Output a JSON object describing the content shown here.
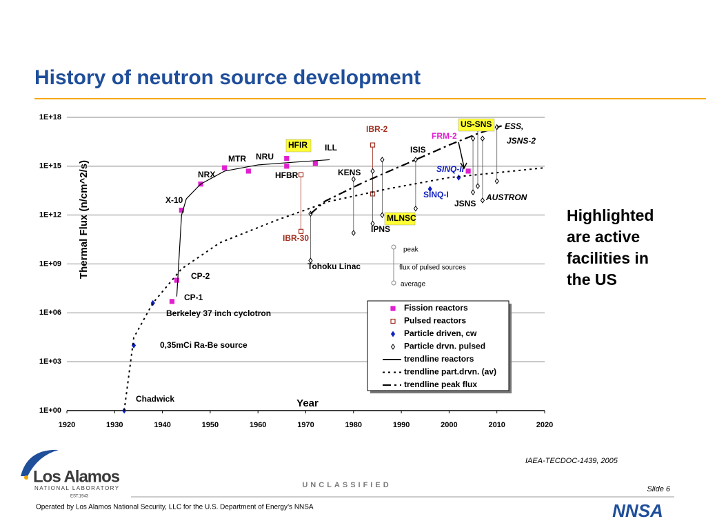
{
  "title": "History of neutron source development",
  "side_text": [
    "Highlighted",
    "are active",
    "facilities in",
    "the US"
  ],
  "source": "IAEA-TECDOC-1439, 2005",
  "classification": "UNCLASSIFIED",
  "slide": "Slide 6",
  "footer": "Operated by Los Alamos National Security, LLC for the U.S. Department of Energy’s NNSA",
  "logo": {
    "name": "Los Alamos",
    "sub": "NATIONAL LABORATORY",
    "est": "EST.1943",
    "partner": "NNSA"
  },
  "chart_data": {
    "type": "scatter",
    "xlabel": "Year",
    "ylabel": "Thermal Flux (n/cm^2/s)",
    "xlim": [
      1920,
      2020
    ],
    "xticks": [
      1920,
      1930,
      1940,
      1950,
      1960,
      1970,
      1980,
      1990,
      2000,
      2010,
      2020
    ],
    "ylim": [
      1,
      1e+18
    ],
    "log_y": true,
    "grid": true,
    "yticks": [
      {
        "value": 1,
        "label": "1E+00"
      },
      {
        "value": 1000,
        "label": "1E+03"
      },
      {
        "value": 1000000,
        "label": "1E+06"
      },
      {
        "value": 1000000000,
        "label": "1E+09"
      },
      {
        "value": 1000000000000,
        "label": "1E+12"
      },
      {
        "value": 1000000000000000,
        "label": "1E+15"
      },
      {
        "value": 1e+18,
        "label": "1E+18"
      }
    ],
    "series": [
      {
        "name": "Fission reactors",
        "color": "#e020d0",
        "marker": "square",
        "x": [
          1942,
          1943,
          1944,
          1948,
          1953,
          1958,
          1966,
          1966,
          1972,
          2004
        ],
        "values": [
          5000000.0,
          100000000.0,
          2000000000000.0,
          80000000000000.0,
          800000000000000.0,
          500000000000000.0,
          3000000000000000.0,
          1000000000000000.0,
          1500000000000000.0,
          500000000000000.0
        ]
      },
      {
        "name": "Pulsed reactors",
        "color": "#a03020",
        "marker": "open-square",
        "x": [
          1969,
          1984
        ],
        "values": [
          300000000000000.0,
          2e+16
        ],
        "average": [
          100000000000.0,
          20000000000000.0
        ]
      },
      {
        "name": "Particle driven, cw",
        "color": "#1020c0",
        "marker": "diamond",
        "x": [
          1932,
          1934,
          1938,
          1996,
          2002
        ],
        "values": [
          1,
          10000.0,
          4000000.0,
          40000000000000.0,
          200000000000000.0
        ]
      },
      {
        "name": "Particle drvn. pulsed",
        "color": "#000000",
        "marker": "open-diamond",
        "x": [
          1971,
          1980,
          1984,
          1986,
          1993,
          2005,
          2006,
          2007,
          2010
        ],
        "values": [
          1200000000000.0,
          160000000000000.0,
          500000000000000.0,
          2500000000000000.0,
          2500000000000000.0,
          5e+16,
          2e+17,
          5e+16,
          2.5e+17
        ],
        "average": [
          1600000000.0,
          80000000000.0,
          300000000000.0,
          1000000000000.0,
          2500000000000.0,
          25000000000000.0,
          60000000000000.0,
          8000000000000.0,
          120000000000000.0
        ]
      },
      {
        "name": "trendline reactors",
        "color": "#000000",
        "marker": "none",
        "line": "solid",
        "x": [
          1943,
          1944,
          1945,
          1948,
          1953,
          1960,
          1968,
          1975
        ],
        "values": [
          10000000.0,
          1000000000000.0,
          10000000000000.0,
          80000000000000.0,
          500000000000000.0,
          1200000000000000.0,
          1800000000000000.0,
          2500000000000000.0
        ]
      },
      {
        "name": "trendline part.drvn. (av)",
        "color": "#000000",
        "marker": "none",
        "line": "dotted",
        "x": [
          1932,
          1934,
          1938,
          1944,
          1952,
          1964,
          1975,
          1987,
          2000,
          2020
        ],
        "values": [
          1,
          30000.0,
          4000000.0,
          500000000.0,
          20000000000.0,
          500000000000.0,
          7000000000000.0,
          40000000000000.0,
          200000000000000.0,
          800000000000000.0
        ]
      },
      {
        "name": "trendline peak flux",
        "color": "#000000",
        "marker": "none",
        "line": "dashed",
        "x": [
          1971,
          1974,
          1982,
          1993,
          2000,
          2006,
          2011
        ],
        "values": [
          1200000000000.0,
          7000000000000.0,
          100000000000000.0,
          2500000000000000.0,
          2e+16,
          1e+17,
          3e+17
        ]
      }
    ],
    "annotations": [
      "Chadwick",
      "0,35mCi Ra-Be source",
      "Berkeley 37 inch cyclotron",
      "CP-1",
      "CP-2",
      "X-10",
      "NRX",
      "MTR",
      "NRU",
      "HFIR",
      "ILL",
      "HFBR",
      "IBR-30",
      "IBR-2",
      "KENS",
      "ISIS",
      "Tohoku Linac",
      "IPNS",
      "MLNSC",
      "US-SNS",
      "FRM-2",
      "ESS,",
      "JSNS-2",
      "SINQ-II",
      "SINQ-I",
      "JSNS",
      "AUSTRON"
    ],
    "pulse_legend": [
      "peak",
      "flux of pulsed sources",
      "average"
    ]
  }
}
